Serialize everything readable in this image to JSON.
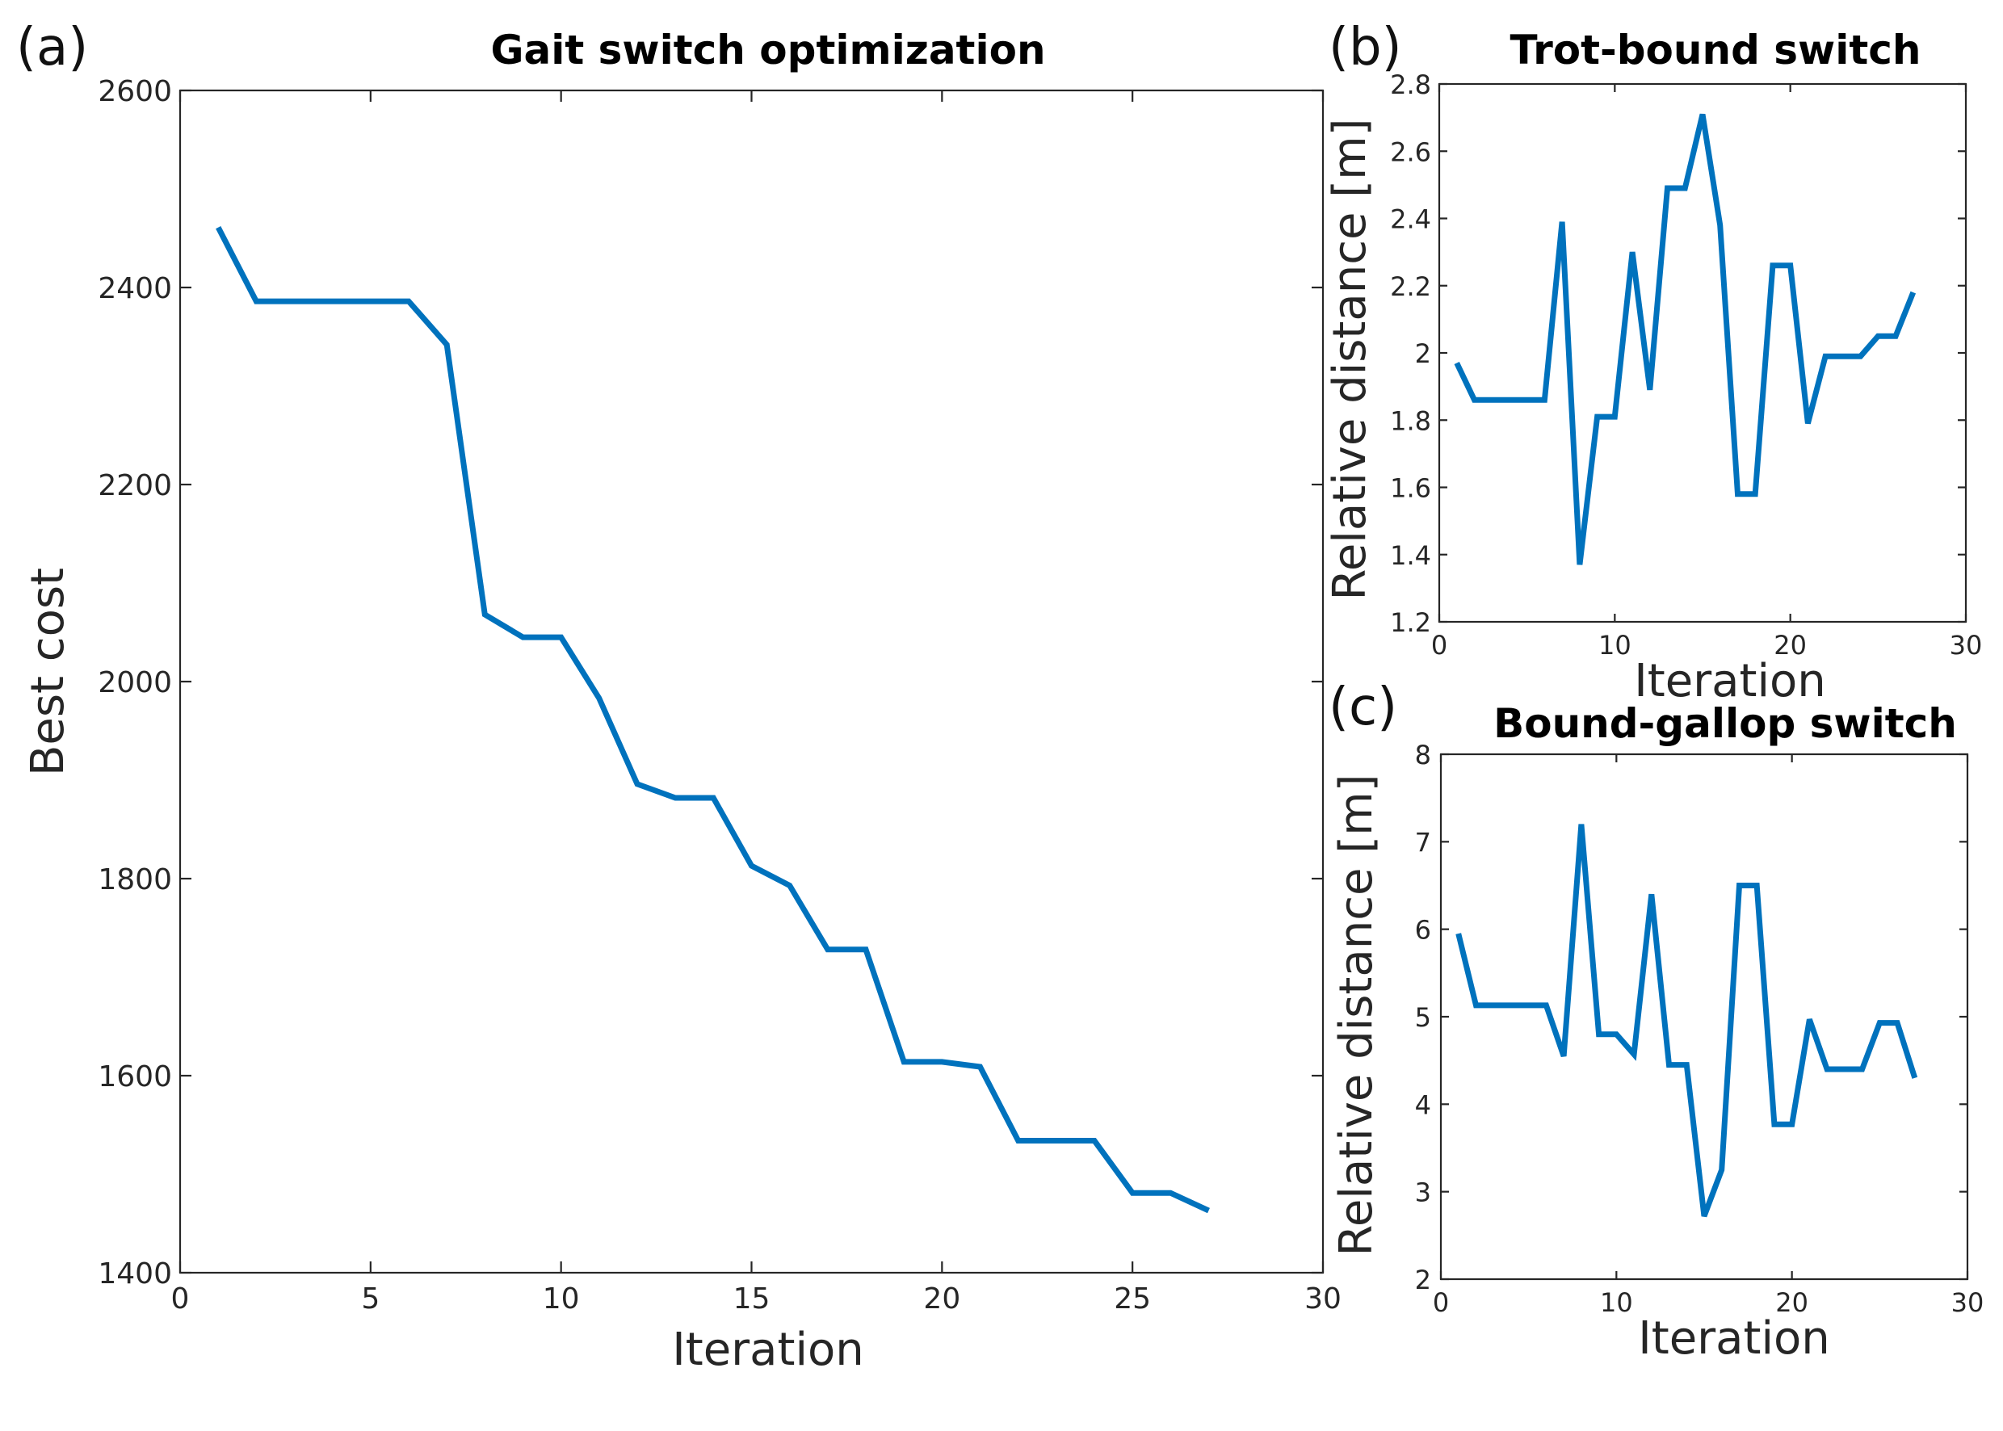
{
  "figure": {
    "colors": {
      "line": "#0072BD",
      "axes": "#262626"
    }
  },
  "chart_data": [
    {
      "id": "a",
      "panel_label": "(a)",
      "type": "line",
      "title": "Gait switch optimization",
      "xlabel": "Iteration",
      "ylabel": "Best cost",
      "xlim": [
        0,
        30
      ],
      "ylim": [
        1400,
        2600
      ],
      "xticks": [
        0,
        5,
        10,
        15,
        20,
        25,
        30
      ],
      "yticks": [
        1400,
        1600,
        1800,
        2000,
        2200,
        2400,
        2600
      ],
      "xtick_labels": [
        "0",
        "5",
        "10",
        "15",
        "20",
        "25",
        "30"
      ],
      "ytick_labels": [
        "1400",
        "1600",
        "1800",
        "2000",
        "2200",
        "2400",
        "2600"
      ],
      "grid": false,
      "x": [
        1,
        2,
        3,
        4,
        5,
        6,
        7,
        8,
        9,
        10,
        11,
        12,
        13,
        14,
        15,
        16,
        17,
        18,
        19,
        20,
        21,
        22,
        23,
        24,
        25,
        26,
        27
      ],
      "y": [
        2461,
        2386,
        2386,
        2386,
        2386,
        2386,
        2342,
        2068,
        2045,
        2045,
        1983,
        1896,
        1882,
        1882,
        1813,
        1793,
        1728,
        1728,
        1614,
        1614,
        1609,
        1534,
        1534,
        1534,
        1481,
        1481,
        1463
      ]
    },
    {
      "id": "b",
      "panel_label": "(b)",
      "type": "line",
      "title": "Trot-bound switch",
      "xlabel": "Iteration",
      "ylabel": "Relative distance [m]",
      "xlim": [
        0,
        30
      ],
      "ylim": [
        1.2,
        2.8
      ],
      "xticks": [
        0,
        10,
        20,
        30
      ],
      "yticks": [
        1.2,
        1.4,
        1.6,
        1.8,
        2.0,
        2.2,
        2.4,
        2.6,
        2.8
      ],
      "xtick_labels": [
        "0",
        "10",
        "20",
        "30"
      ],
      "ytick_labels": [
        "1.2",
        "1.4",
        "1.6",
        "1.8",
        "2",
        "2.2",
        "2.4",
        "2.6",
        "2.8"
      ],
      "grid": false,
      "x": [
        1,
        2,
        3,
        4,
        5,
        6,
        7,
        8,
        9,
        10,
        11,
        12,
        13,
        14,
        15,
        16,
        17,
        18,
        19,
        20,
        21,
        22,
        23,
        24,
        25,
        26,
        27
      ],
      "y": [
        1.97,
        1.86,
        1.86,
        1.86,
        1.86,
        1.86,
        2.39,
        1.37,
        1.81,
        1.81,
        2.3,
        1.89,
        2.49,
        2.49,
        2.71,
        2.38,
        1.58,
        1.58,
        2.26,
        2.26,
        1.79,
        1.99,
        1.99,
        1.99,
        2.05,
        2.05,
        2.18
      ]
    },
    {
      "id": "c",
      "panel_label": "(c)",
      "type": "line",
      "title": "Bound-gallop switch",
      "xlabel": "Iteration",
      "ylabel": "Relative distance [m]",
      "xlim": [
        0,
        30
      ],
      "ylim": [
        2,
        8
      ],
      "xticks": [
        0,
        10,
        20,
        30
      ],
      "yticks": [
        2,
        3,
        4,
        5,
        6,
        7,
        8
      ],
      "xtick_labels": [
        "0",
        "10",
        "20",
        "30"
      ],
      "ytick_labels": [
        "2",
        "3",
        "4",
        "5",
        "6",
        "7",
        "8"
      ],
      "grid": false,
      "x": [
        1,
        2,
        3,
        4,
        5,
        6,
        7,
        8,
        9,
        10,
        11,
        12,
        13,
        14,
        15,
        16,
        17,
        18,
        19,
        20,
        21,
        22,
        23,
        24,
        25,
        26,
        27
      ],
      "y": [
        5.95,
        5.13,
        5.13,
        5.13,
        5.13,
        5.13,
        4.55,
        7.2,
        4.8,
        4.8,
        4.57,
        6.4,
        4.45,
        4.45,
        2.72,
        3.25,
        6.5,
        6.5,
        3.77,
        3.77,
        4.97,
        4.4,
        4.4,
        4.4,
        4.93,
        4.93,
        4.3
      ]
    }
  ]
}
